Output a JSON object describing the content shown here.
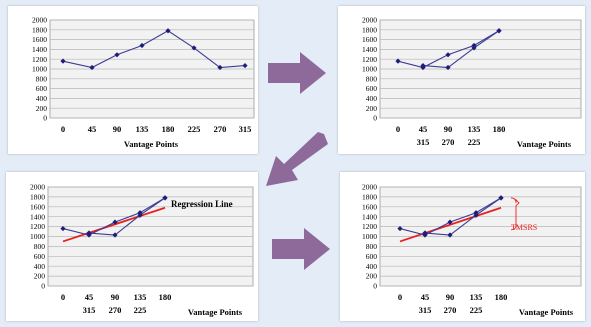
{
  "arrow_color": "#8e6a9a",
  "chart_data": [
    {
      "type": "line",
      "x_ticks": [
        "0",
        "45",
        "90",
        "135",
        "180",
        "225",
        "270",
        "315"
      ],
      "x_ticks_row2": [],
      "xlabel": "Vantage Points",
      "ylim": [
        0,
        2000
      ],
      "y_ticks": [
        0,
        200,
        400,
        600,
        800,
        1000,
        1200,
        1400,
        1600,
        1800,
        2000
      ],
      "grid": true,
      "series": [
        {
          "color": "#3c3c96",
          "points": [
            [
              0,
              1160
            ],
            [
              45,
              1030
            ],
            [
              90,
              1290
            ],
            [
              135,
              1480
            ],
            [
              180,
              1780
            ],
            [
              225,
              1430
            ],
            [
              270,
              1030
            ],
            [
              315,
              1070
            ]
          ]
        }
      ]
    },
    {
      "type": "line",
      "x_ticks": [
        "0",
        "45",
        "90",
        "135",
        "180"
      ],
      "x_ticks_row2": [
        "315",
        "270",
        "225"
      ],
      "xlabel": "Vantage Points",
      "ylim": [
        0,
        2000
      ],
      "y_ticks": [
        0,
        200,
        400,
        600,
        800,
        1000,
        1200,
        1400,
        1600,
        1800,
        2000
      ],
      "grid": true,
      "series": [
        {
          "color": "#3c3c96",
          "points": [
            [
              0,
              1160
            ],
            [
              45,
              1030
            ],
            [
              90,
              1290
            ],
            [
              135,
              1480
            ],
            [
              180,
              1780
            ]
          ]
        },
        {
          "color": "#3c3c96",
          "points": [
            [
              45,
              1070
            ],
            [
              90,
              1030
            ],
            [
              135,
              1430
            ],
            [
              180,
              1780
            ]
          ]
        }
      ]
    },
    {
      "type": "line",
      "x_ticks": [
        "0",
        "45",
        "90",
        "135",
        "180"
      ],
      "x_ticks_row2": [
        "315",
        "270",
        "225"
      ],
      "xlabel": "Vantage Points",
      "ylim": [
        0,
        2000
      ],
      "y_ticks": [
        0,
        200,
        400,
        600,
        800,
        1000,
        1200,
        1400,
        1600,
        1800,
        2000
      ],
      "grid": true,
      "series": [
        {
          "color": "#3c3c96",
          "points": [
            [
              0,
              1160
            ],
            [
              45,
              1030
            ],
            [
              90,
              1290
            ],
            [
              135,
              1480
            ],
            [
              180,
              1780
            ]
          ]
        },
        {
          "color": "#3c3c96",
          "points": [
            [
              45,
              1070
            ],
            [
              90,
              1030
            ],
            [
              135,
              1430
            ],
            [
              180,
              1780
            ]
          ]
        }
      ],
      "regression": {
        "color": "#e8201e",
        "from": [
          0,
          900
        ],
        "to": [
          180,
          1580
        ]
      },
      "annotation": {
        "text": "Regression Line",
        "color": "#000000"
      }
    },
    {
      "type": "line",
      "x_ticks": [
        "0",
        "45",
        "90",
        "135",
        "180"
      ],
      "x_ticks_row2": [
        "315",
        "270",
        "225"
      ],
      "xlabel": "Vantage Points",
      "ylim": [
        0,
        2000
      ],
      "y_ticks": [
        0,
        200,
        400,
        600,
        800,
        1000,
        1200,
        1400,
        1600,
        1800,
        2000
      ],
      "grid": true,
      "series": [
        {
          "color": "#3c3c96",
          "points": [
            [
              0,
              1160
            ],
            [
              45,
              1030
            ],
            [
              90,
              1290
            ],
            [
              135,
              1480
            ],
            [
              180,
              1780
            ]
          ]
        },
        {
          "color": "#3c3c96",
          "points": [
            [
              45,
              1070
            ],
            [
              90,
              1030
            ],
            [
              135,
              1430
            ],
            [
              180,
              1780
            ]
          ]
        }
      ],
      "regression": {
        "color": "#e8201e",
        "from": [
          0,
          900
        ],
        "to": [
          180,
          1580
        ]
      },
      "annotation": {
        "text": "TMSRS",
        "color": "#e8201e"
      }
    }
  ]
}
